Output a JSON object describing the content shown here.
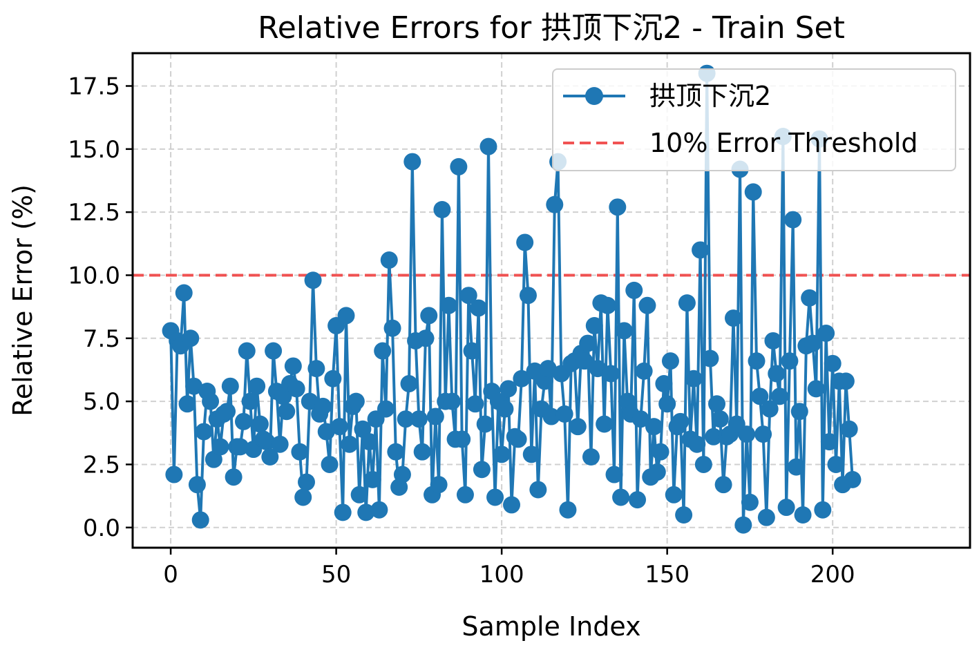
{
  "chart_data": {
    "type": "line",
    "title": "Relative Errors for 拱顶下沉2 - Train Set",
    "xlabel": "Sample Index",
    "ylabel": "Relative Error (%)",
    "xlim": [
      -11.5,
      241.5
    ],
    "ylim": [
      -0.8,
      18.8
    ],
    "xticks": [
      0,
      50,
      100,
      150,
      200
    ],
    "xtick_labels": [
      "0",
      "50",
      "100",
      "150",
      "200"
    ],
    "yticks": [
      0.0,
      2.5,
      5.0,
      7.5,
      10.0,
      12.5,
      15.0,
      17.5
    ],
    "ytick_labels": [
      "0.0",
      "2.5",
      "5.0",
      "7.5",
      "10.0",
      "12.5",
      "15.0",
      "17.5"
    ],
    "grid": true,
    "legend_position": "top-right",
    "threshold": {
      "name": "10% Error Threshold",
      "value": 10.0,
      "color": "#f04040",
      "style": "dashed"
    },
    "series": [
      {
        "name": "拱顶下沉2",
        "color": "#1f77b4",
        "marker": "circle",
        "values": [
          7.8,
          2.1,
          7.4,
          7.2,
          9.3,
          4.9,
          7.5,
          5.6,
          1.7,
          0.3,
          3.8,
          5.4,
          5.0,
          2.7,
          4.3,
          3.2,
          4.5,
          4.6,
          5.6,
          2.0,
          3.2,
          3.2,
          4.2,
          7.0,
          5.0,
          3.1,
          5.6,
          4.1,
          3.5,
          3.4,
          2.8,
          7.0,
          5.4,
          3.3,
          5.2,
          4.6,
          5.7,
          6.4,
          5.5,
          3.0,
          1.2,
          1.8,
          5.0,
          9.8,
          6.3,
          4.5,
          4.8,
          3.8,
          2.5,
          5.9,
          8.0,
          4.0,
          0.6,
          8.4,
          3.3,
          4.8,
          5.0,
          1.3,
          3.9,
          0.6,
          3.4,
          1.9,
          4.3,
          0.7,
          7.0,
          4.7,
          10.6,
          7.9,
          3.0,
          1.6,
          2.1,
          4.3,
          5.7,
          14.5,
          7.4,
          4.3,
          3.0,
          7.5,
          8.4,
          1.3,
          4.4,
          1.7,
          12.6,
          5.0,
          8.8,
          5.0,
          3.5,
          14.3,
          3.5,
          1.3,
          9.2,
          7.0,
          4.9,
          8.7,
          2.3,
          4.1,
          15.1,
          5.4,
          1.2,
          5.0,
          2.9,
          4.7,
          5.5,
          0.9,
          3.6,
          3.5,
          5.9,
          11.3,
          9.2,
          2.9,
          6.2,
          1.5,
          4.7,
          5.8,
          6.3,
          4.4,
          12.8,
          14.5,
          6.1,
          4.5,
          0.7,
          6.5,
          6.6,
          4.0,
          6.9,
          6.6,
          7.3,
          2.8,
          8.0,
          6.3,
          8.9,
          4.1,
          8.8,
          6.1,
          2.1,
          12.7,
          1.2,
          7.8,
          5.0,
          4.5,
          9.4,
          1.1,
          4.3,
          6.2,
          8.8,
          2.0,
          4.0,
          2.2,
          3.0,
          5.7,
          4.9,
          6.6,
          1.3,
          4.0,
          4.2,
          0.5,
          8.9,
          3.5,
          5.9,
          3.3,
          11.0,
          2.5,
          18.0,
          6.7,
          3.6,
          4.9,
          4.3,
          1.7,
          3.6,
          3.7,
          8.3,
          4.1,
          14.2,
          0.1,
          3.7,
          1.0,
          13.3,
          6.6,
          5.2,
          3.7,
          0.4,
          4.7,
          7.4,
          6.1,
          5.2,
          15.5,
          0.8,
          6.6,
          12.2,
          2.4,
          4.6,
          0.5,
          7.2,
          9.1,
          7.3,
          5.5,
          15.4,
          0.7,
          7.7,
          3.4,
          6.5,
          2.5,
          5.8,
          1.7,
          5.8,
          3.9,
          1.9
        ]
      }
    ]
  }
}
